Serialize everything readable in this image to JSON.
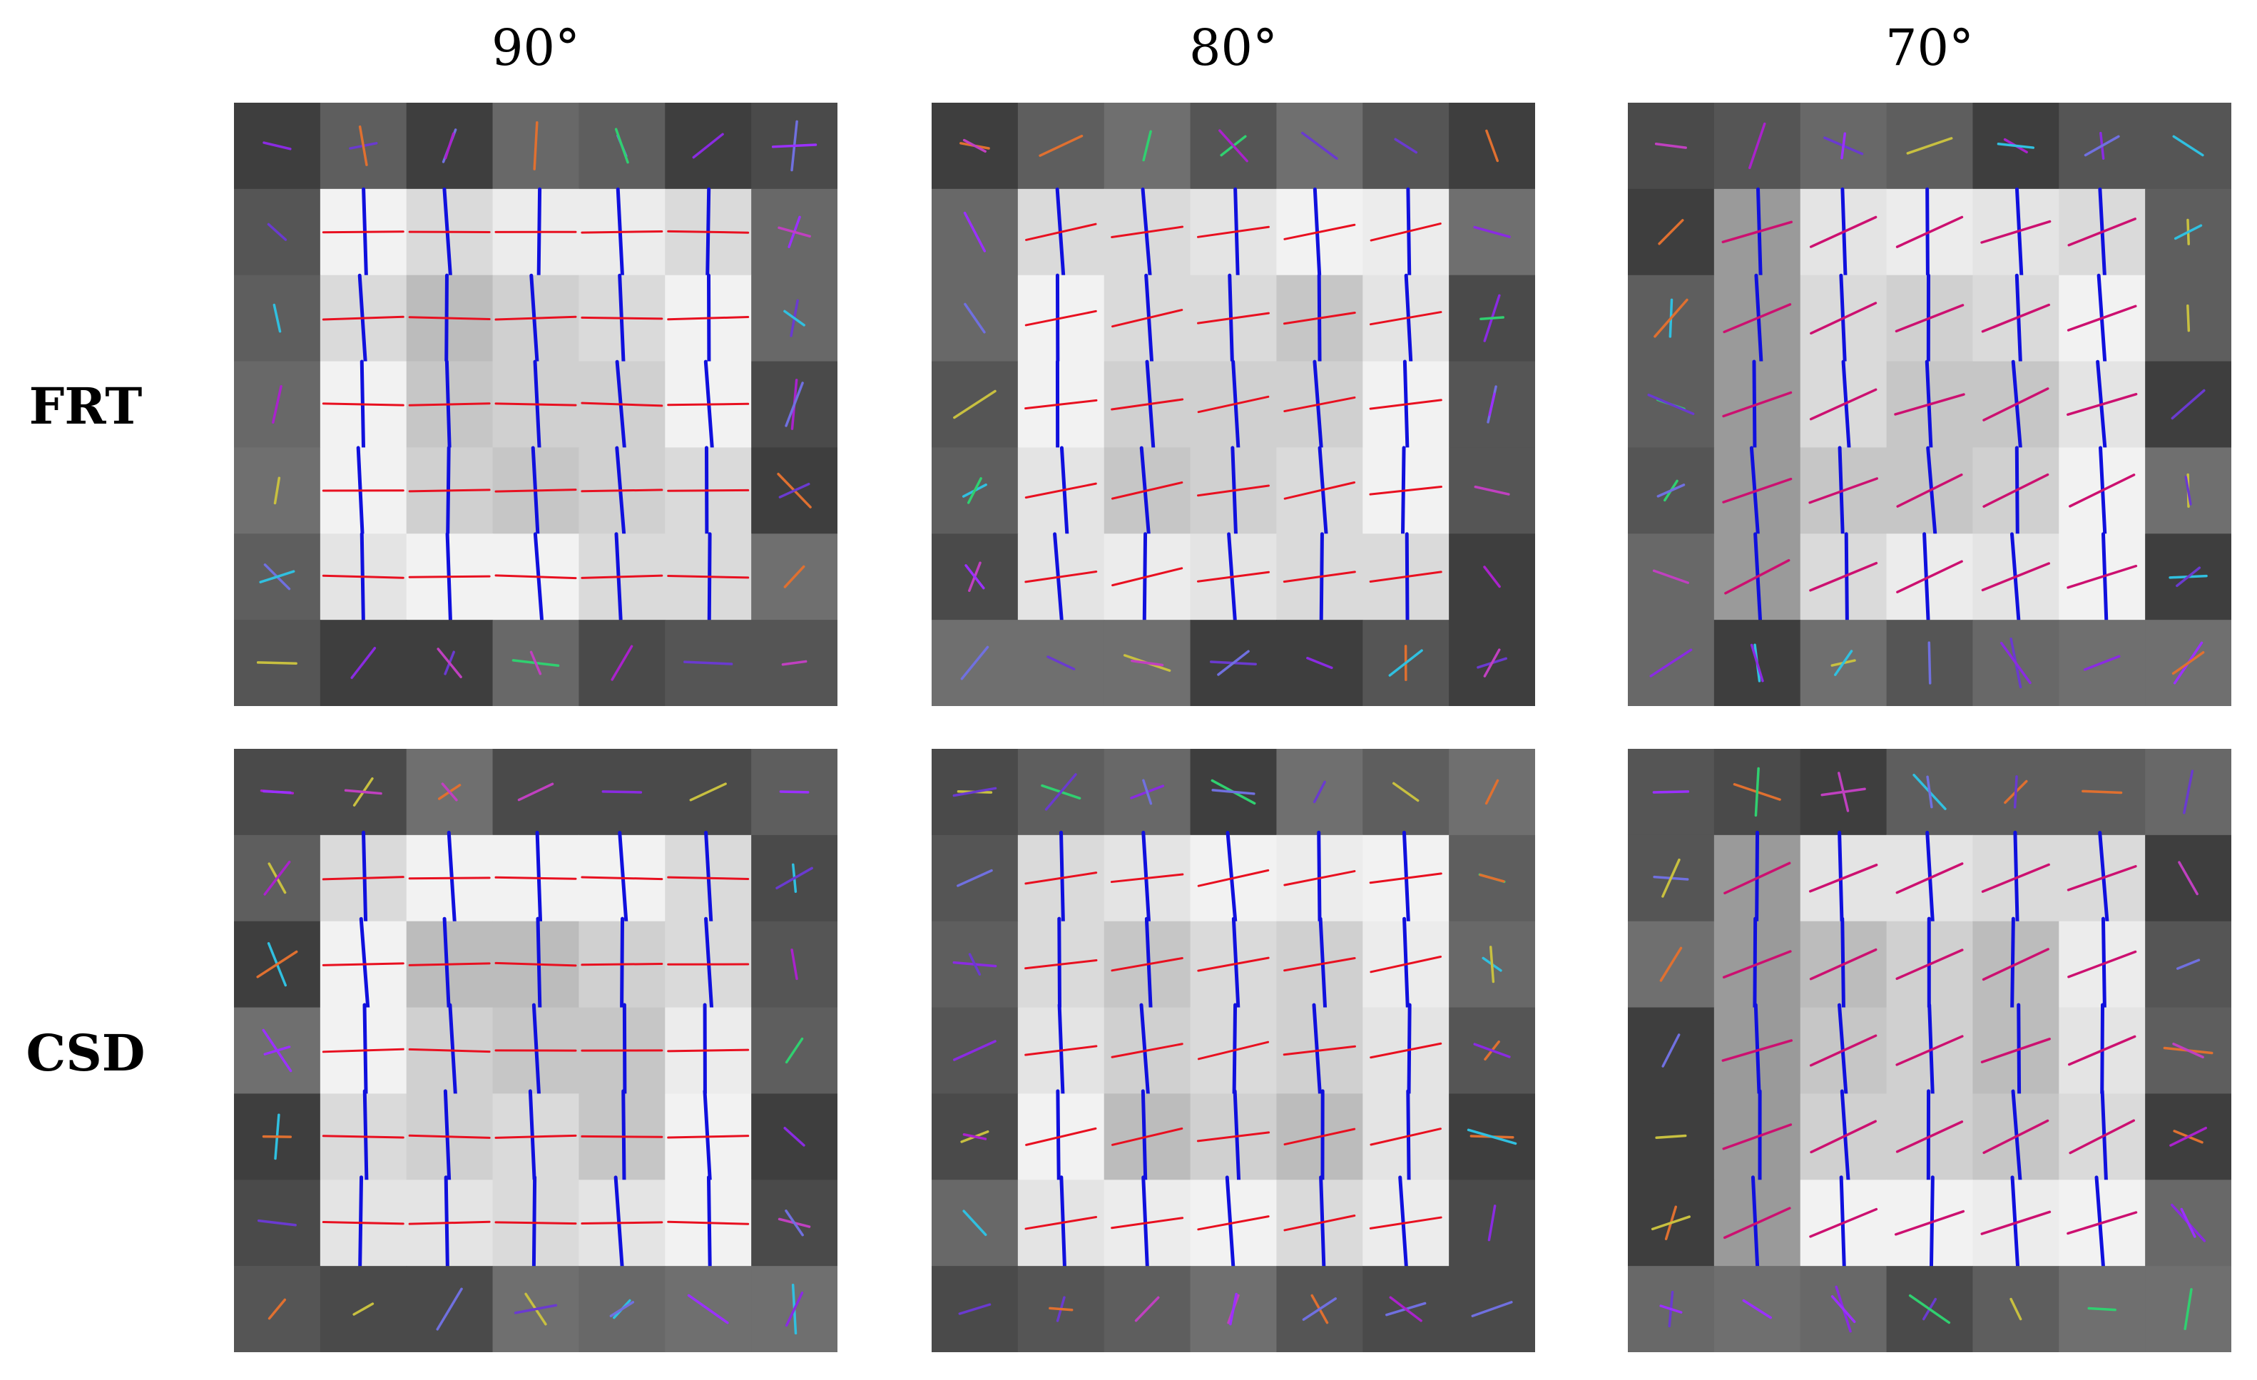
{
  "columns": [
    {
      "angle_label": "90°"
    },
    {
      "angle_label": "80°"
    },
    {
      "angle_label": "70°"
    }
  ],
  "rows": [
    {
      "method_label": "FRT"
    },
    {
      "method_label": "CSD"
    }
  ],
  "colors": {
    "background": "#ffffff",
    "fiber_axis_1": "#1010dd",
    "fiber_axis_2": "#e81020",
    "oblique_fiber": "#cc1070",
    "outer_background_dark": "#3c3c3c",
    "outer_background_light": "#6a6a6a",
    "inner_cell_light": "#ececec",
    "inner_cell_mid": "#c9c9c9"
  },
  "grid": {
    "rows": 7,
    "cols": 7,
    "inner_block": "rows 1-5 by cols 1-5"
  }
}
